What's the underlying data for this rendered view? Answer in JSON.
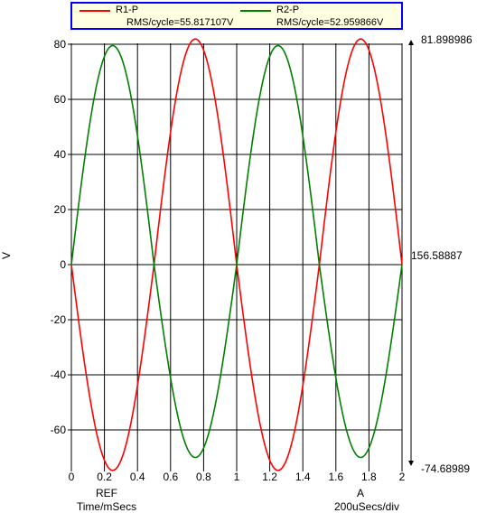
{
  "legend": {
    "series": [
      {
        "name": "R1-P",
        "rms": "RMS/cycle=55.817107V"
      },
      {
        "name": "R2-P",
        "rms": "RMS/cycle=52.959866V"
      }
    ]
  },
  "right_axis": {
    "top_value": "81.898986",
    "span_value": "156.58887",
    "bottom_value": "-74.68989"
  },
  "bottom_labels": {
    "ref": "REF",
    "time_units": "Time/mSecs",
    "cursor": "A",
    "scale": "200uSecs/div"
  },
  "chart_data": {
    "type": "line",
    "title": "",
    "xlabel": "Time/mSecs",
    "ylabel": "V",
    "xlim": [
      0,
      2
    ],
    "ylim": [
      -74,
      82
    ],
    "x_ticks": [
      0,
      0.2,
      0.4,
      0.6,
      0.8,
      1,
      1.2,
      1.4,
      1.6,
      1.8,
      2
    ],
    "y_ticks": [
      -60,
      -40,
      -20,
      0,
      20,
      40,
      60,
      80
    ],
    "grid": true,
    "legend_position": "top",
    "frequency_hz": 1000,
    "series": [
      {
        "name": "R1-P",
        "color": "#ff0000",
        "shape": "-sine",
        "positive_peak": 81.898986,
        "negative_peak": -74.68989,
        "rms_per_cycle": 55.817107
      },
      {
        "name": "R2-P",
        "color": "#008000",
        "shape": "sine",
        "positive_peak": 79.5,
        "negative_peak": -70.0,
        "rms_per_cycle": 52.959866
      }
    ]
  }
}
